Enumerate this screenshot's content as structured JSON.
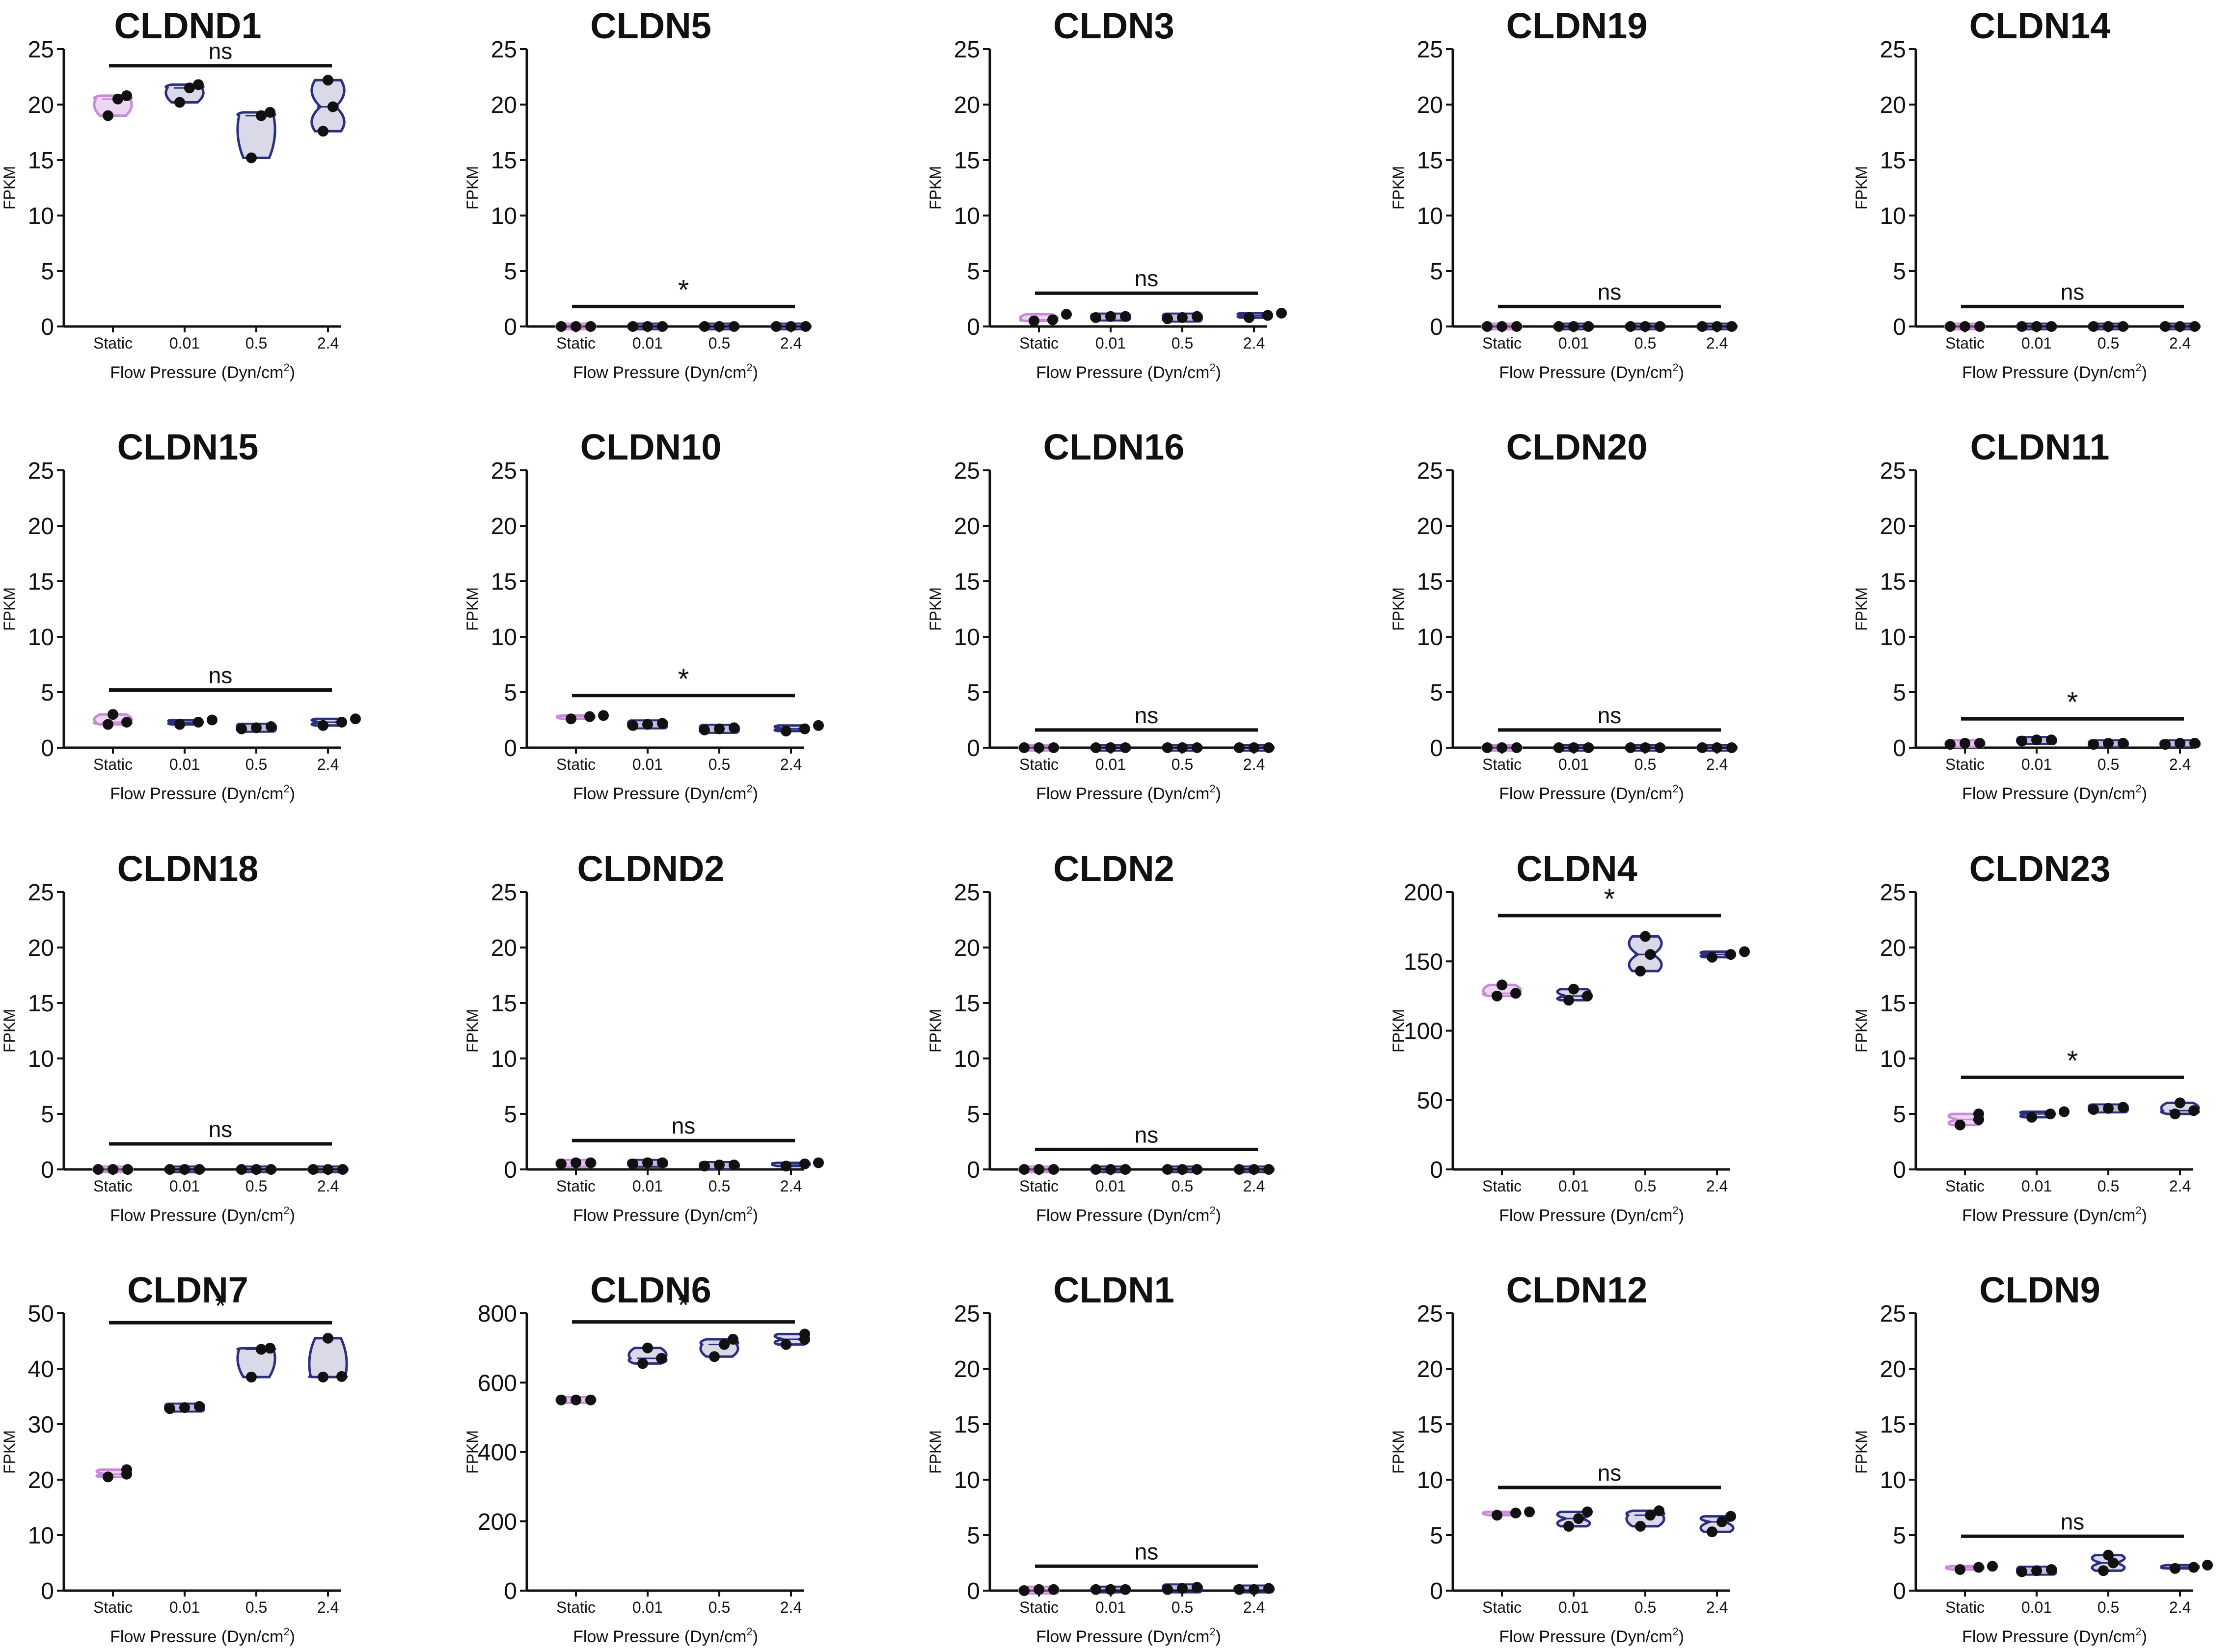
{
  "figure": {
    "colors": {
      "static": "#c98ad8",
      "flow": "#2b2f7e",
      "ink": "#111111",
      "dot": "#111111"
    },
    "categories": [
      "Static",
      "0.01",
      "0.5",
      "2.4"
    ],
    "ylabel": "FPKM",
    "xlabel_main": "Flow Pressure (Dyn/cm",
    "xlabel_sup": "2",
    "xlabel_end": ")"
  },
  "chart_data": [
    {
      "type": "violin",
      "title": "CLDND1",
      "ylim": [
        0,
        25
      ],
      "yticks": [
        0,
        5,
        10,
        15,
        20,
        25
      ],
      "sig": "ns",
      "bar_y": 23.5,
      "categories": [
        "Static",
        "0.01",
        "0.5",
        "2.4"
      ],
      "series": [
        {
          "values": [
            [
              19,
              20.5,
              20.8
            ]
          ]
        },
        {
          "values": [
            [
              20.2,
              21.5,
              21.8
            ]
          ]
        },
        {
          "values": [
            [
              15.2,
              19,
              19.3
            ]
          ]
        },
        {
          "values": [
            [
              17.6,
              19.8,
              22.2
            ]
          ]
        }
      ]
    },
    {
      "type": "violin",
      "title": "CLDN5",
      "ylim": [
        0,
        25
      ],
      "yticks": [
        0,
        5,
        10,
        15,
        20,
        25
      ],
      "sig": "*",
      "bar_y": 1.8,
      "categories": [
        "Static",
        "0.01",
        "0.5",
        "2.4"
      ],
      "series": [
        {
          "values": [
            [
              0,
              0,
              0
            ]
          ]
        },
        {
          "values": [
            [
              0,
              0,
              0
            ]
          ]
        },
        {
          "values": [
            [
              0,
              0,
              0
            ]
          ]
        },
        {
          "values": [
            [
              0,
              0,
              0
            ]
          ]
        }
      ]
    },
    {
      "type": "violin",
      "title": "CLDN3",
      "ylim": [
        0,
        25
      ],
      "yticks": [
        0,
        5,
        10,
        15,
        20,
        25
      ],
      "sig": "ns",
      "bar_y": 3,
      "categories": [
        "Static",
        "0.01",
        "0.5",
        "2.4"
      ],
      "series": [
        {
          "values": [
            [
              0.5,
              0.6,
              1.1
            ]
          ]
        },
        {
          "values": [
            [
              0.8,
              0.9,
              0.9
            ]
          ]
        },
        {
          "values": [
            [
              0.7,
              0.8,
              0.9
            ]
          ]
        },
        {
          "values": [
            [
              0.8,
              1.0,
              1.2
            ]
          ]
        }
      ]
    },
    {
      "type": "violin",
      "title": "CLDN19",
      "ylim": [
        0,
        25
      ],
      "yticks": [
        0,
        5,
        10,
        15,
        20,
        25
      ],
      "sig": "ns",
      "bar_y": 1.8,
      "categories": [
        "Static",
        "0.01",
        "0.5",
        "2.4"
      ],
      "series": [
        {
          "values": [
            [
              0,
              0,
              0
            ]
          ]
        },
        {
          "values": [
            [
              0,
              0,
              0
            ]
          ]
        },
        {
          "values": [
            [
              0,
              0,
              0
            ]
          ]
        },
        {
          "values": [
            [
              0,
              0,
              0
            ]
          ]
        }
      ]
    },
    {
      "type": "violin",
      "title": "CLDN14",
      "ylim": [
        0,
        25
      ],
      "yticks": [
        0,
        5,
        10,
        15,
        20,
        25
      ],
      "sig": "ns",
      "bar_y": 1.8,
      "categories": [
        "Static",
        "0.01",
        "0.5",
        "2.4"
      ],
      "series": [
        {
          "values": [
            [
              0,
              0,
              0
            ]
          ]
        },
        {
          "values": [
            [
              0,
              0,
              0
            ]
          ]
        },
        {
          "values": [
            [
              0,
              0,
              0
            ]
          ]
        },
        {
          "values": [
            [
              0,
              0,
              0
            ]
          ]
        }
      ]
    },
    {
      "type": "violin",
      "title": "CLDN15",
      "ylim": [
        0,
        25
      ],
      "yticks": [
        0,
        5,
        10,
        15,
        20,
        25
      ],
      "sig": "ns",
      "bar_y": 5.2,
      "categories": [
        "Static",
        "0.01",
        "0.5",
        "2.4"
      ],
      "series": [
        {
          "values": [
            [
              2.1,
              2.3,
              3
            ]
          ]
        },
        {
          "values": [
            [
              2.1,
              2.3,
              2.5
            ]
          ]
        },
        {
          "values": [
            [
              1.7,
              1.8,
              1.9
            ]
          ]
        },
        {
          "values": [
            [
              2.0,
              2.3,
              2.6
            ]
          ]
        }
      ]
    },
    {
      "type": "violin",
      "title": "CLDN10",
      "ylim": [
        0,
        25
      ],
      "yticks": [
        0,
        5,
        10,
        15,
        20,
        25
      ],
      "sig": "*",
      "bar_y": 4.7,
      "categories": [
        "Static",
        "0.01",
        "0.5",
        "2.4"
      ],
      "series": [
        {
          "values": [
            [
              2.6,
              2.8,
              2.9
            ]
          ]
        },
        {
          "values": [
            [
              2.0,
              2.1,
              2.2
            ]
          ]
        },
        {
          "values": [
            [
              1.6,
              1.7,
              1.8
            ]
          ]
        },
        {
          "values": [
            [
              1.5,
              1.7,
              2.0
            ]
          ]
        }
      ]
    },
    {
      "type": "violin",
      "title": "CLDN16",
      "ylim": [
        0,
        25
      ],
      "yticks": [
        0,
        5,
        10,
        15,
        20,
        25
      ],
      "sig": "ns",
      "bar_y": 1.6,
      "categories": [
        "Static",
        "0.01",
        "0.5",
        "2.4"
      ],
      "series": [
        {
          "values": [
            [
              0,
              0,
              0
            ]
          ]
        },
        {
          "values": [
            [
              0,
              0,
              0
            ]
          ]
        },
        {
          "values": [
            [
              0,
              0,
              0
            ]
          ]
        },
        {
          "values": [
            [
              0,
              0,
              0
            ]
          ]
        }
      ]
    },
    {
      "type": "violin",
      "title": "CLDN20",
      "ylim": [
        0,
        25
      ],
      "yticks": [
        0,
        5,
        10,
        15,
        20,
        25
      ],
      "sig": "ns",
      "bar_y": 1.6,
      "categories": [
        "Static",
        "0.01",
        "0.5",
        "2.4"
      ],
      "series": [
        {
          "values": [
            [
              0,
              0,
              0
            ]
          ]
        },
        {
          "values": [
            [
              0,
              0,
              0
            ]
          ]
        },
        {
          "values": [
            [
              0,
              0,
              0
            ]
          ]
        },
        {
          "values": [
            [
              0,
              0,
              0
            ]
          ]
        }
      ]
    },
    {
      "type": "violin",
      "title": "CLDN11",
      "ylim": [
        0,
        25
      ],
      "yticks": [
        0,
        5,
        10,
        15,
        20,
        25
      ],
      "sig": "*",
      "bar_y": 2.6,
      "categories": [
        "Static",
        "0.01",
        "0.5",
        "2.4"
      ],
      "series": [
        {
          "values": [
            [
              0.3,
              0.4,
              0.4
            ]
          ]
        },
        {
          "values": [
            [
              0.6,
              0.7,
              0.7
            ]
          ]
        },
        {
          "values": [
            [
              0.3,
              0.4,
              0.4
            ]
          ]
        },
        {
          "values": [
            [
              0.3,
              0.4,
              0.4
            ]
          ]
        }
      ]
    },
    {
      "type": "violin",
      "title": "CLDN18",
      "ylim": [
        0,
        25
      ],
      "yticks": [
        0,
        5,
        10,
        15,
        20,
        25
      ],
      "sig": "ns",
      "bar_y": 2.3,
      "categories": [
        "Static",
        "0.01",
        "0.5",
        "2.4"
      ],
      "series": [
        {
          "values": [
            [
              0,
              0,
              0
            ]
          ]
        },
        {
          "values": [
            [
              0,
              0,
              0
            ]
          ]
        },
        {
          "values": [
            [
              0,
              0,
              0
            ]
          ]
        },
        {
          "values": [
            [
              0,
              0,
              0
            ]
          ]
        }
      ]
    },
    {
      "type": "violin",
      "title": "CLDND2",
      "ylim": [
        0,
        25
      ],
      "yticks": [
        0,
        5,
        10,
        15,
        20,
        25
      ],
      "sig": "ns",
      "bar_y": 2.6,
      "categories": [
        "Static",
        "0.01",
        "0.5",
        "2.4"
      ],
      "series": [
        {
          "values": [
            [
              0.5,
              0.6,
              0.6
            ]
          ]
        },
        {
          "values": [
            [
              0.5,
              0.6,
              0.6
            ]
          ]
        },
        {
          "values": [
            [
              0.3,
              0.4,
              0.4
            ]
          ]
        },
        {
          "values": [
            [
              0.3,
              0.5,
              0.6
            ]
          ]
        }
      ]
    },
    {
      "type": "violin",
      "title": "CLDN2",
      "ylim": [
        0,
        25
      ],
      "yticks": [
        0,
        5,
        10,
        15,
        20,
        25
      ],
      "sig": "ns",
      "bar_y": 1.8,
      "categories": [
        "Static",
        "0.01",
        "0.5",
        "2.4"
      ],
      "series": [
        {
          "values": [
            [
              0,
              0,
              0
            ]
          ]
        },
        {
          "values": [
            [
              0,
              0,
              0
            ]
          ]
        },
        {
          "values": [
            [
              0,
              0,
              0
            ]
          ]
        },
        {
          "values": [
            [
              0,
              0,
              0
            ]
          ]
        }
      ]
    },
    {
      "type": "violin",
      "title": "CLDN4",
      "ylim": [
        0,
        200
      ],
      "yticks": [
        0,
        50,
        100,
        150,
        200
      ],
      "sig": "*",
      "bar_y": 183,
      "categories": [
        "Static",
        "0.01",
        "0.5",
        "2.4"
      ],
      "series": [
        {
          "values": [
            [
              125,
              127,
              133
            ]
          ]
        },
        {
          "values": [
            [
              122,
              125,
              130
            ]
          ]
        },
        {
          "values": [
            [
              143,
              155,
              168
            ]
          ]
        },
        {
          "values": [
            [
              153,
              155,
              157
            ]
          ]
        }
      ]
    },
    {
      "type": "violin",
      "title": "CLDN23",
      "ylim": [
        0,
        25
      ],
      "yticks": [
        0,
        5,
        10,
        15,
        20,
        25
      ],
      "sig": "*",
      "bar_y": 8.3,
      "categories": [
        "Static",
        "0.01",
        "0.5",
        "2.4"
      ],
      "series": [
        {
          "values": [
            [
              4,
              4.5,
              5
            ]
          ]
        },
        {
          "values": [
            [
              4.7,
              5,
              5.2
            ]
          ]
        },
        {
          "values": [
            [
              5.4,
              5.5,
              5.6
            ]
          ]
        },
        {
          "values": [
            [
              5,
              5.3,
              6
            ]
          ]
        }
      ]
    },
    {
      "type": "violin",
      "title": "CLDN7",
      "ylim": [
        0,
        50
      ],
      "yticks": [
        0,
        10,
        20,
        30,
        40,
        50
      ],
      "sig": "*",
      "bar_y": 48.3,
      "categories": [
        "Static",
        "0.01",
        "0.5",
        "2.4"
      ],
      "series": [
        {
          "values": [
            [
              20.5,
              21,
              21.8
            ]
          ]
        },
        {
          "values": [
            [
              32.8,
              33,
              33.2
            ]
          ]
        },
        {
          "values": [
            [
              38.5,
              43.5,
              43.7
            ]
          ]
        },
        {
          "values": [
            [
              38.5,
              38.6,
              45.5
            ]
          ]
        }
      ]
    },
    {
      "type": "violin",
      "title": "CLDN6",
      "ylim": [
        0,
        800
      ],
      "yticks": [
        0,
        200,
        400,
        600,
        800
      ],
      "sig": "*",
      "bar_y": 775,
      "categories": [
        "Static",
        "0.01",
        "0.5",
        "2.4"
      ],
      "series": [
        {
          "values": [
            [
              550,
              550,
              550
            ]
          ]
        },
        {
          "values": [
            [
              655,
              670,
              700
            ]
          ]
        },
        {
          "values": [
            [
              675,
              710,
              725
            ]
          ]
        },
        {
          "values": [
            [
              710,
              725,
              740
            ]
          ]
        }
      ]
    },
    {
      "type": "violin",
      "title": "CLDN1",
      "ylim": [
        0,
        25
      ],
      "yticks": [
        0,
        5,
        10,
        15,
        20,
        25
      ],
      "sig": "ns",
      "bar_y": 2.2,
      "categories": [
        "Static",
        "0.01",
        "0.5",
        "2.4"
      ],
      "series": [
        {
          "values": [
            [
              0,
              0.1,
              0.1
            ]
          ]
        },
        {
          "values": [
            [
              0.1,
              0.1,
              0.1
            ]
          ]
        },
        {
          "values": [
            [
              0.1,
              0.2,
              0.3
            ]
          ]
        },
        {
          "values": [
            [
              0.1,
              0.1,
              0.2
            ]
          ]
        }
      ]
    },
    {
      "type": "violin",
      "title": "CLDN12",
      "ylim": [
        0,
        25
      ],
      "yticks": [
        0,
        5,
        10,
        15,
        20,
        25
      ],
      "sig": "ns",
      "bar_y": 9.3,
      "categories": [
        "Static",
        "0.01",
        "0.5",
        "2.4"
      ],
      "series": [
        {
          "values": [
            [
              6.8,
              7,
              7.1
            ]
          ]
        },
        {
          "values": [
            [
              5.8,
              6.5,
              7.1
            ]
          ]
        },
        {
          "values": [
            [
              5.8,
              6.8,
              7.2
            ]
          ]
        },
        {
          "values": [
            [
              5.3,
              6.2,
              6.7
            ]
          ]
        }
      ]
    },
    {
      "type": "violin",
      "title": "CLDN9",
      "ylim": [
        0,
        25
      ],
      "yticks": [
        0,
        5,
        10,
        15,
        20,
        25
      ],
      "sig": "ns",
      "bar_y": 4.9,
      "categories": [
        "Static",
        "0.01",
        "0.5",
        "2.4"
      ],
      "series": [
        {
          "values": [
            [
              1.9,
              2.1,
              2.2
            ]
          ]
        },
        {
          "values": [
            [
              1.7,
              1.8,
              1.9
            ]
          ]
        },
        {
          "values": [
            [
              1.8,
              2.5,
              3.2
            ]
          ]
        },
        {
          "values": [
            [
              2.0,
              2.1,
              2.3
            ]
          ]
        }
      ]
    }
  ]
}
